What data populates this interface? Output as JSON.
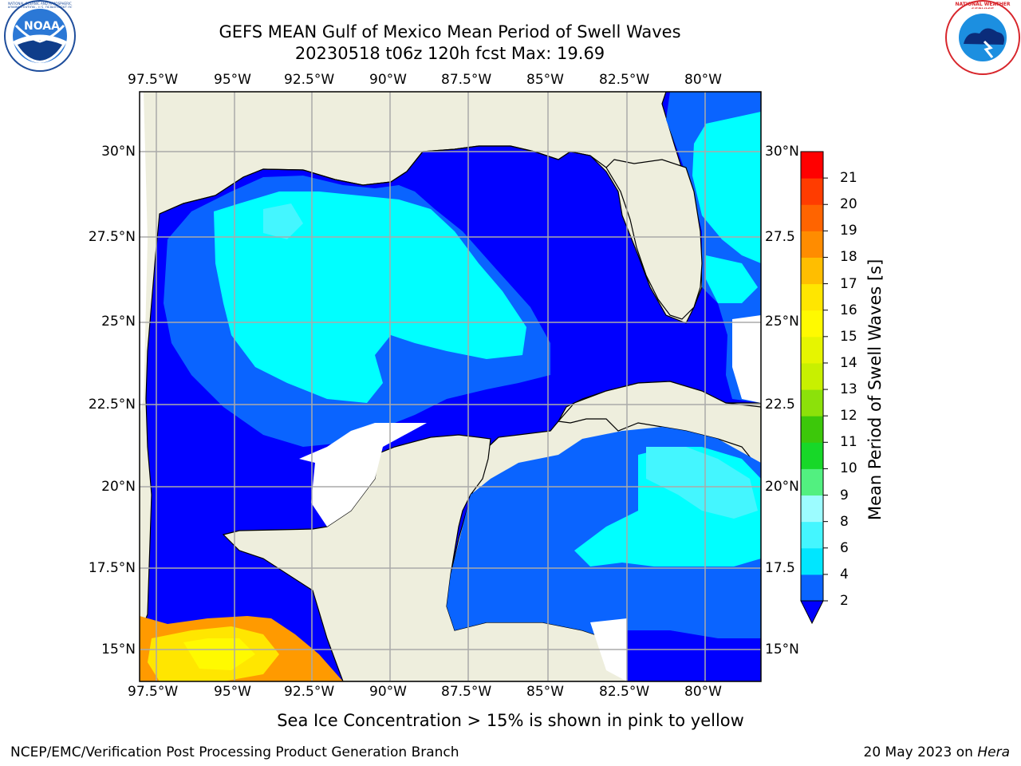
{
  "header": {
    "title_line1": "GEFS MEAN Gulf of Mexico Mean Period of Swell Waves",
    "title_line2": "20230518 t06z 120h fcst   Max: 19.69"
  },
  "logos": {
    "noaa_text": "NOAA",
    "noaa_ring_text": "NATIONAL OCEANIC AND ATMOSPHERIC ADMINISTRATION · U.S. DEPARTMENT OF COMMERCE",
    "nws_ring_text": "NATIONAL WEATHER SERVICE"
  },
  "map": {
    "lon_ticks": [
      "97.5°W",
      "95°W",
      "92.5°W",
      "90°W",
      "87.5°W",
      "85°W",
      "82.5°W",
      "80°W"
    ],
    "lat_ticks_left": [
      "30°N",
      "27.5°N",
      "25°N",
      "22.5°N",
      "20°N",
      "17.5°N",
      "15°N"
    ],
    "lat_ticks_right": [
      "30°N",
      "27.5",
      "25°N",
      "22.5",
      "20°N",
      "17.5",
      "15°N"
    ],
    "land_color": "#eeeedd",
    "gridline_color": "#aaaaaa"
  },
  "colorbar": {
    "title": "Mean Period of Swell Waves [s]",
    "levels": [
      "2",
      "4",
      "6",
      "8",
      "9",
      "10",
      "11",
      "12",
      "13",
      "14",
      "15",
      "16",
      "17",
      "18",
      "19",
      "20",
      "21"
    ],
    "colors": [
      "#0a64ff",
      "#00e6ff",
      "#44f6ff",
      "#9cfcff",
      "#52f080",
      "#17d828",
      "#3cc80a",
      "#8ce10a",
      "#c8f000",
      "#e6f500",
      "#fffa00",
      "#ffe600",
      "#ffbe00",
      "#ff8c00",
      "#ff6400",
      "#ff3c00",
      "#ff0000"
    ],
    "under_color": "#0000ff"
  },
  "caption": "Sea Ice Concentration > 15% is shown in pink to yellow",
  "footer": {
    "left": "NCEP/EMC/Verification Post Processing Product Generation Branch",
    "date": "20 May 2023 on ",
    "machine": "Hera"
  }
}
